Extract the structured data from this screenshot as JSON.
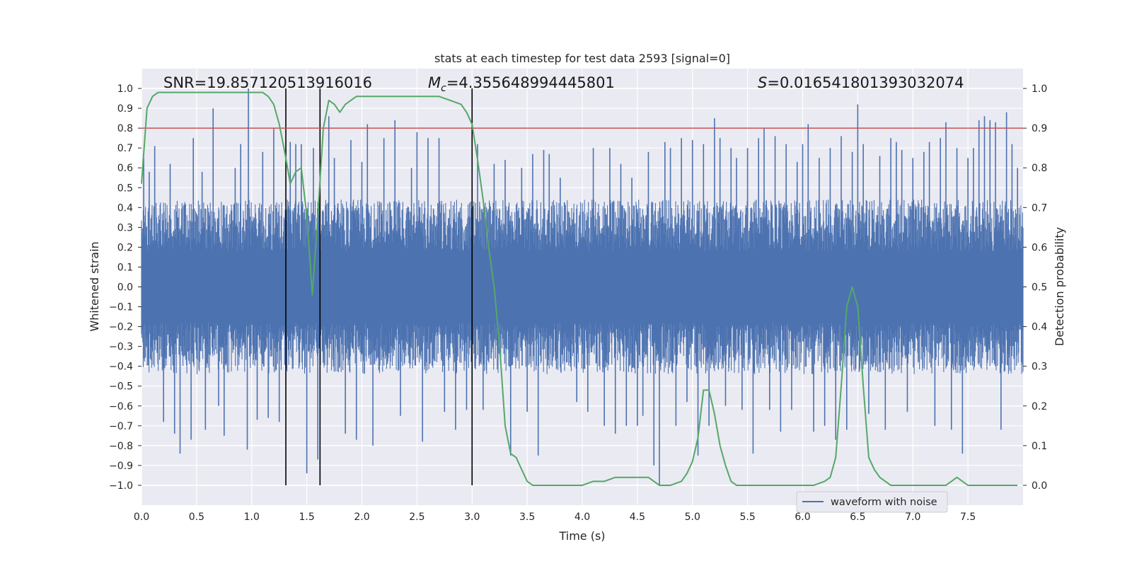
{
  "chart_data": {
    "type": "line",
    "title": "stats at each timestep for test data 2593 [signal=0]",
    "xlabel": "Time (s)",
    "ylabel_left": "Whitened strain",
    "ylabel_right": "Detection probability",
    "xlim": [
      0.0,
      8.0
    ],
    "ylim_left": [
      -1.1,
      1.1
    ],
    "ylim_right": [
      -0.05,
      1.05
    ],
    "x_ticks": [
      0.0,
      0.5,
      1.0,
      1.5,
      2.0,
      2.5,
      3.0,
      3.5,
      4.0,
      4.5,
      5.0,
      5.5,
      6.0,
      6.5,
      7.0,
      7.5
    ],
    "x_tick_labels": [
      "0.0",
      "0.5",
      "1.0",
      "1.5",
      "2.0",
      "2.5",
      "3.0",
      "3.5",
      "4.0",
      "4.5",
      "5.0",
      "5.5",
      "6.0",
      "6.5",
      "7.0",
      "7.5"
    ],
    "y_left_ticks": [
      1.0,
      0.9,
      0.8,
      0.7,
      0.6,
      0.5,
      0.4,
      0.3,
      0.2,
      0.1,
      0.0,
      -0.1,
      -0.2,
      -0.3,
      -0.4,
      -0.5,
      -0.6,
      -0.7,
      -0.8,
      -0.9,
      -1.0
    ],
    "y_left_tick_labels": [
      "1.0",
      "0.9",
      "0.8",
      "0.7",
      "0.6",
      "0.5",
      "0.4",
      "0.3",
      "0.2",
      "0.1",
      "0.0",
      "−0.1",
      "−0.2",
      "−0.3",
      "−0.4",
      "−0.5",
      "−0.6",
      "−0.7",
      "−0.8",
      "−0.9",
      "−1.0"
    ],
    "y_right_ticks": [
      1.0,
      0.9,
      0.8,
      0.7,
      0.6,
      0.5,
      0.4,
      0.3,
      0.2,
      0.1,
      0.0
    ],
    "y_right_tick_labels": [
      "1.0",
      "0.9",
      "0.8",
      "0.7",
      "0.6",
      "0.5",
      "0.4",
      "0.3",
      "0.2",
      "0.1",
      "0.0"
    ],
    "annotations": {
      "snr": "SNR=19.857120513916016",
      "mc_symbol": "M",
      "mc_sub": "c",
      "mc_value": "=4.355648994445801",
      "s_symbol": "S",
      "s_value": "=0.016541801393032074"
    },
    "threshold": 0.9,
    "vertical_lines": [
      1.31,
      1.62,
      3.0
    ],
    "legend": {
      "label": "waveform with noise",
      "position": "lower-right"
    },
    "waveform": {
      "name": "waveform with noise",
      "color": "#4c72b0",
      "typical_envelope": 0.4,
      "spikes": [
        [
          0.02,
          0.65
        ],
        [
          0.07,
          0.58
        ],
        [
          0.12,
          0.71
        ],
        [
          0.2,
          -0.68
        ],
        [
          0.26,
          0.62
        ],
        [
          0.3,
          -0.74
        ],
        [
          0.35,
          -0.84
        ],
        [
          0.45,
          -0.77
        ],
        [
          0.47,
          0.75
        ],
        [
          0.55,
          0.58
        ],
        [
          0.58,
          -0.72
        ],
        [
          0.65,
          0.9
        ],
        [
          0.7,
          -0.6
        ],
        [
          0.75,
          -0.75
        ],
        [
          0.85,
          0.6
        ],
        [
          0.9,
          0.72
        ],
        [
          0.96,
          -0.82
        ],
        [
          0.97,
          1.0
        ],
        [
          1.05,
          -0.67
        ],
        [
          1.1,
          0.68
        ],
        [
          1.15,
          -0.66
        ],
        [
          1.2,
          0.8
        ],
        [
          1.25,
          -0.68
        ],
        [
          1.35,
          0.73
        ],
        [
          1.4,
          0.72
        ],
        [
          1.45,
          0.72
        ],
        [
          1.5,
          -0.94
        ],
        [
          1.56,
          0.7
        ],
        [
          1.6,
          -0.87
        ],
        [
          1.7,
          0.86
        ],
        [
          1.75,
          0.65
        ],
        [
          1.85,
          -0.74
        ],
        [
          1.9,
          0.74
        ],
        [
          1.95,
          -0.77
        ],
        [
          2.0,
          0.63
        ],
        [
          2.05,
          0.82
        ],
        [
          2.1,
          -0.8
        ],
        [
          2.2,
          0.75
        ],
        [
          2.3,
          0.84
        ],
        [
          2.35,
          -0.65
        ],
        [
          2.45,
          0.6
        ],
        [
          2.5,
          0.78
        ],
        [
          2.55,
          -0.78
        ],
        [
          2.6,
          0.75
        ],
        [
          2.7,
          0.75
        ],
        [
          2.75,
          -0.63
        ],
        [
          2.85,
          -0.72
        ],
        [
          2.95,
          -0.62
        ],
        [
          3.05,
          0.72
        ],
        [
          3.1,
          -0.62
        ],
        [
          3.2,
          0.62
        ],
        [
          3.3,
          0.64
        ],
        [
          3.35,
          -0.85
        ],
        [
          3.45,
          0.6
        ],
        [
          3.5,
          -0.63
        ],
        [
          3.55,
          0.67
        ],
        [
          3.6,
          -0.85
        ],
        [
          3.65,
          0.69
        ],
        [
          3.7,
          0.67
        ],
        [
          3.8,
          0.55
        ],
        [
          3.95,
          -0.58
        ],
        [
          4.05,
          -0.63
        ],
        [
          4.1,
          0.7
        ],
        [
          4.2,
          -0.7
        ],
        [
          4.25,
          0.7
        ],
        [
          4.3,
          -0.74
        ],
        [
          4.35,
          0.62
        ],
        [
          4.4,
          -0.7
        ],
        [
          4.45,
          0.55
        ],
        [
          4.5,
          -0.7
        ],
        [
          4.55,
          -0.65
        ],
        [
          4.6,
          0.68
        ],
        [
          4.65,
          -0.9
        ],
        [
          4.7,
          -1.0
        ],
        [
          4.75,
          0.73
        ],
        [
          4.8,
          0.7
        ],
        [
          4.85,
          -0.7
        ],
        [
          4.9,
          0.75
        ],
        [
          4.95,
          -0.58
        ],
        [
          5.0,
          0.74
        ],
        [
          5.05,
          -0.85
        ],
        [
          5.1,
          0.72
        ],
        [
          5.15,
          -0.7
        ],
        [
          5.2,
          0.85
        ],
        [
          5.25,
          0.75
        ],
        [
          5.3,
          -0.6
        ],
        [
          5.35,
          0.7
        ],
        [
          5.4,
          0.65
        ],
        [
          5.45,
          -0.62
        ],
        [
          5.5,
          0.7
        ],
        [
          5.55,
          -0.84
        ],
        [
          5.6,
          0.75
        ],
        [
          5.65,
          0.8
        ],
        [
          5.7,
          -0.62
        ],
        [
          5.75,
          0.76
        ],
        [
          5.8,
          -0.73
        ],
        [
          5.85,
          0.72
        ],
        [
          5.9,
          -0.62
        ],
        [
          5.95,
          0.63
        ],
        [
          6.0,
          0.72
        ],
        [
          6.05,
          0.82
        ],
        [
          6.1,
          -0.73
        ],
        [
          6.15,
          0.65
        ],
        [
          6.2,
          -0.7
        ],
        [
          6.25,
          0.7
        ],
        [
          6.3,
          -0.77
        ],
        [
          6.35,
          0.76
        ],
        [
          6.4,
          -0.72
        ],
        [
          6.45,
          0.68
        ],
        [
          6.5,
          0.92
        ],
        [
          6.55,
          0.72
        ],
        [
          6.6,
          -0.64
        ],
        [
          6.7,
          0.66
        ],
        [
          6.75,
          -0.72
        ],
        [
          6.8,
          0.75
        ],
        [
          6.85,
          0.73
        ],
        [
          6.9,
          0.69
        ],
        [
          6.95,
          -0.63
        ],
        [
          7.0,
          0.65
        ],
        [
          7.1,
          0.68
        ],
        [
          7.15,
          0.73
        ],
        [
          7.2,
          -0.7
        ],
        [
          7.25,
          0.75
        ],
        [
          7.3,
          0.83
        ],
        [
          7.35,
          -0.72
        ],
        [
          7.4,
          0.7
        ],
        [
          7.45,
          -0.84
        ],
        [
          7.5,
          0.65
        ],
        [
          7.55,
          0.7
        ],
        [
          7.6,
          0.84
        ],
        [
          7.65,
          0.86
        ],
        [
          7.7,
          0.84
        ],
        [
          7.75,
          0.83
        ],
        [
          7.8,
          -0.72
        ],
        [
          7.85,
          0.88
        ],
        [
          7.9,
          0.72
        ],
        [
          7.95,
          0.6
        ]
      ]
    },
    "probability": {
      "name": "detection probability",
      "color": "#55a868",
      "x": [
        0.0,
        0.05,
        0.1,
        0.15,
        0.2,
        0.3,
        0.5,
        0.7,
        0.9,
        1.0,
        1.1,
        1.15,
        1.2,
        1.25,
        1.3,
        1.35,
        1.4,
        1.45,
        1.5,
        1.55,
        1.6,
        1.65,
        1.7,
        1.75,
        1.8,
        1.85,
        1.9,
        1.95,
        2.0,
        2.1,
        2.2,
        2.3,
        2.4,
        2.5,
        2.6,
        2.7,
        2.8,
        2.9,
        2.95,
        3.0,
        3.05,
        3.1,
        3.15,
        3.2,
        3.25,
        3.3,
        3.35,
        3.4,
        3.45,
        3.5,
        3.55,
        3.6,
        3.8,
        3.9,
        4.0,
        4.1,
        4.2,
        4.3,
        4.35,
        4.4,
        4.5,
        4.6,
        4.65,
        4.7,
        4.75,
        4.8,
        4.9,
        4.95,
        5.0,
        5.05,
        5.1,
        5.15,
        5.2,
        5.25,
        5.3,
        5.35,
        5.4,
        5.6,
        5.7,
        5.8,
        6.0,
        6.1,
        6.2,
        6.25,
        6.3,
        6.35,
        6.4,
        6.45,
        6.5,
        6.55,
        6.6,
        6.65,
        6.7,
        6.75,
        6.8,
        7.0,
        7.2,
        7.3,
        7.4,
        7.45,
        7.5,
        7.6,
        7.7,
        7.95
      ],
      "y": [
        0.76,
        0.95,
        0.98,
        0.99,
        0.99,
        0.99,
        0.99,
        0.99,
        0.99,
        0.99,
        0.99,
        0.98,
        0.96,
        0.91,
        0.84,
        0.76,
        0.79,
        0.8,
        0.68,
        0.48,
        0.68,
        0.9,
        0.97,
        0.96,
        0.94,
        0.96,
        0.97,
        0.98,
        0.98,
        0.98,
        0.98,
        0.98,
        0.98,
        0.98,
        0.98,
        0.98,
        0.97,
        0.96,
        0.94,
        0.91,
        0.82,
        0.72,
        0.6,
        0.5,
        0.35,
        0.15,
        0.08,
        0.07,
        0.04,
        0.01,
        0.0,
        0.0,
        0.0,
        0.0,
        0.0,
        0.01,
        0.01,
        0.02,
        0.02,
        0.02,
        0.02,
        0.02,
        0.01,
        0.0,
        0.0,
        0.0,
        0.01,
        0.03,
        0.06,
        0.12,
        0.24,
        0.24,
        0.18,
        0.1,
        0.05,
        0.01,
        0.0,
        0.0,
        0.0,
        0.0,
        0.0,
        0.0,
        0.01,
        0.02,
        0.07,
        0.25,
        0.45,
        0.5,
        0.45,
        0.25,
        0.07,
        0.04,
        0.02,
        0.01,
        0.0,
        0.0,
        0.0,
        0.0,
        0.02,
        0.01,
        0.0,
        0.0,
        0.0,
        0.0
      ]
    }
  }
}
